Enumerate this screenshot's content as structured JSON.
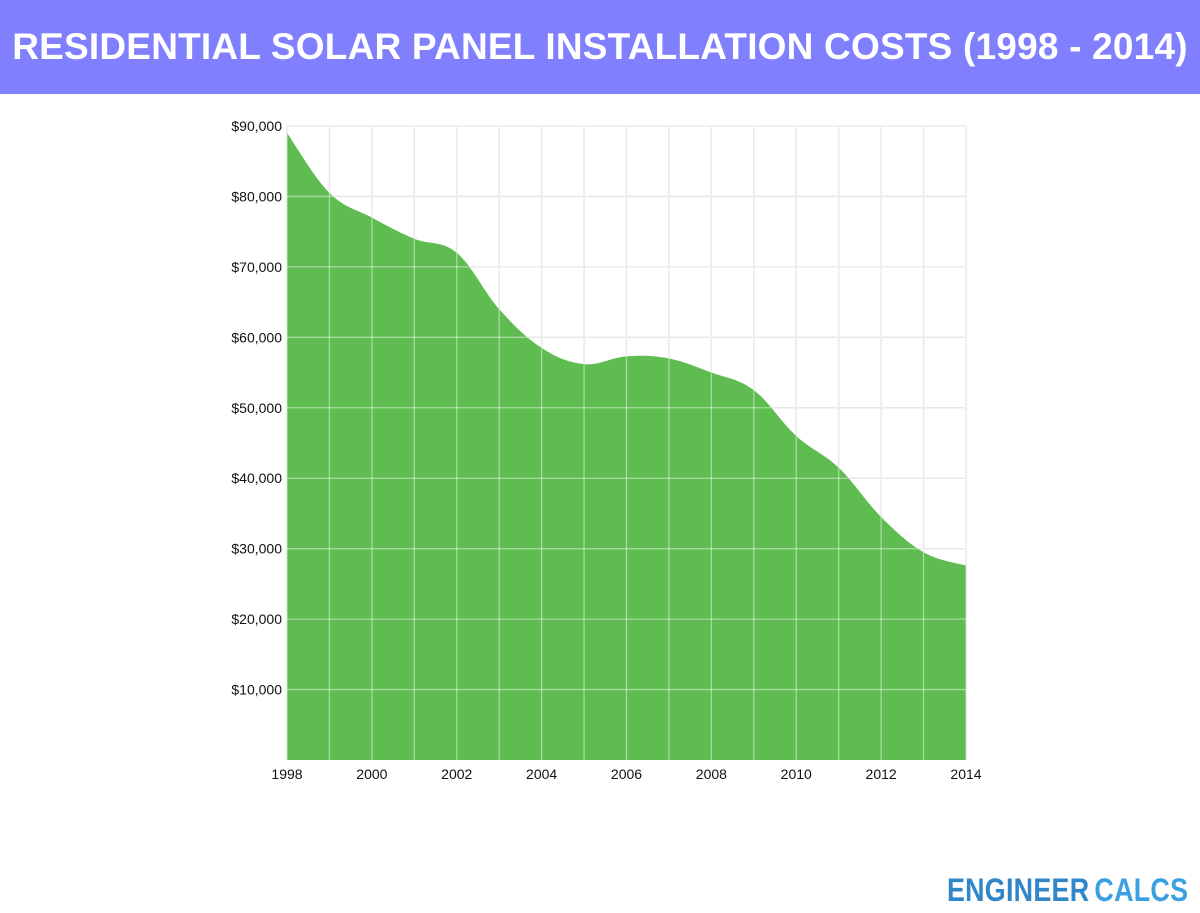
{
  "header": {
    "title": "RESIDENTIAL SOLAR PANEL INSTALLATION COSTS (1998 - 2014)",
    "background": "#8080ff"
  },
  "brand": {
    "word1": "ENGINEER",
    "word2": "CALCS",
    "color1": "#2f86c9",
    "color2": "#3aa0e2"
  },
  "colors": {
    "area_fill": "#5aba4b",
    "grid": "#d6d6d6"
  },
  "chart_data": {
    "type": "area",
    "title": "RESIDENTIAL SOLAR PANEL INSTALLATION COSTS (1998 - 2014)",
    "xlabel": "",
    "ylabel": "",
    "x": [
      1998,
      1999,
      2000,
      2001,
      2002,
      2003,
      2004,
      2005,
      2006,
      2007,
      2008,
      2009,
      2010,
      2011,
      2012,
      2013,
      2014
    ],
    "values": [
      89000,
      80500,
      77000,
      74000,
      72000,
      64000,
      58500,
      56200,
      57300,
      57000,
      55000,
      52500,
      46000,
      41500,
      34500,
      29500,
      27600
    ],
    "xlim": [
      1998,
      2014
    ],
    "ylim": [
      0,
      90000
    ],
    "x_ticks": [
      1998,
      2000,
      2002,
      2004,
      2006,
      2008,
      2010,
      2012,
      2014
    ],
    "x_tick_labels": [
      "1998",
      "2000",
      "2002",
      "2004",
      "2006",
      "2008",
      "2010",
      "2012",
      "2014"
    ],
    "y_ticks": [
      10000,
      20000,
      30000,
      40000,
      50000,
      60000,
      70000,
      80000,
      90000
    ],
    "y_tick_labels": [
      "$10,000",
      "$20,000",
      "$30,000",
      "$40,000",
      "$50,000",
      "$60,000",
      "$70,000",
      "$80,000",
      "$90,000"
    ],
    "grid": true,
    "legend": "none"
  }
}
